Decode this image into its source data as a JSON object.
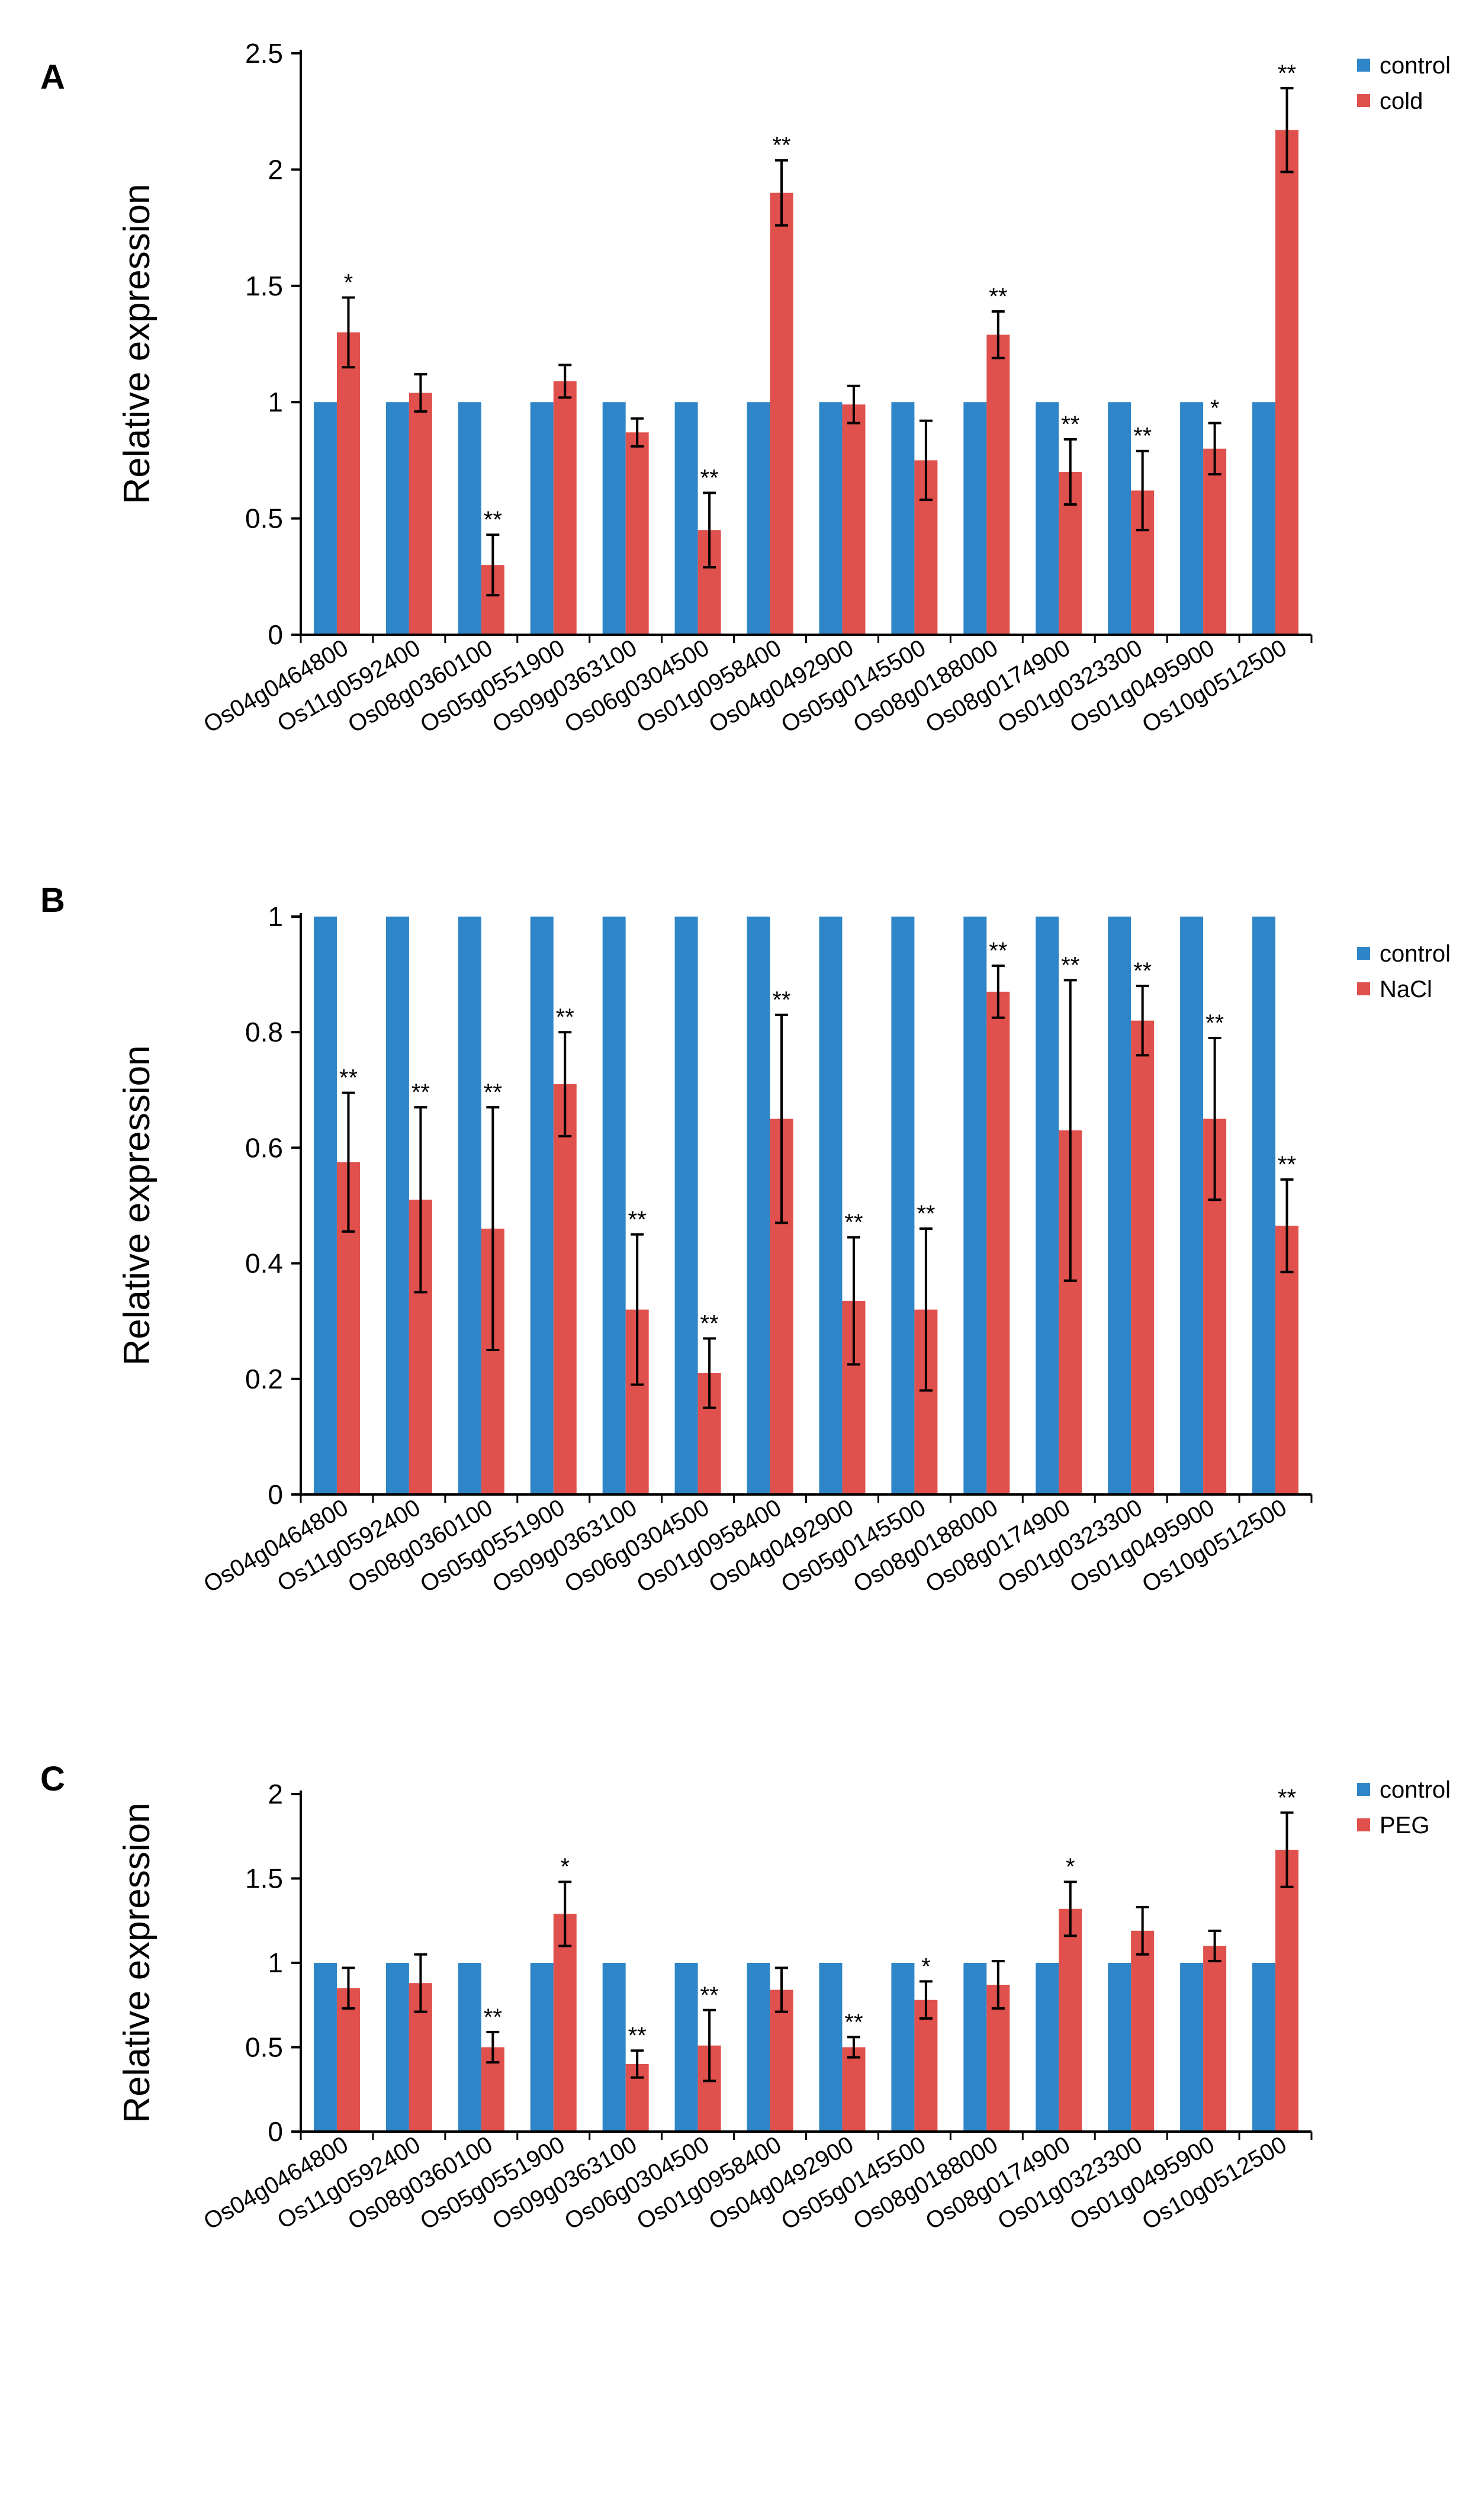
{
  "chart_data": [
    {
      "panel": "A",
      "type": "bar",
      "ylabel": "Relative expression",
      "ylim": [
        0,
        2.5
      ],
      "yticks": [
        "0",
        "0.5",
        "1",
        "1.5",
        "2",
        "2.5"
      ],
      "yticks_values": [
        0,
        0.5,
        1,
        1.5,
        2,
        2.5
      ],
      "categories": [
        "Os04g0464800",
        "Os11g0592400",
        "Os08g0360100",
        "Os05g0551900",
        "Os09g0363100",
        "Os06g0304500",
        "Os01g0958400",
        "Os04g0492900",
        "Os05g0145500",
        "Os08g0188000",
        "Os08g0174900",
        "Os01g0323300",
        "Os01g0495900",
        "Os10g0512500"
      ],
      "legend_position": "top-right",
      "series": [
        {
          "name": "control",
          "color": "#2e86c8",
          "values": [
            1,
            1,
            1,
            1,
            1,
            1,
            1,
            1,
            1,
            1,
            1,
            1,
            1,
            1
          ]
        },
        {
          "name": "cold",
          "color": "#e0504c",
          "values": [
            1.3,
            1.04,
            0.3,
            1.09,
            0.87,
            0.45,
            1.9,
            0.99,
            0.75,
            1.29,
            0.7,
            0.62,
            0.8,
            2.17
          ],
          "errors": [
            0.15,
            0.08,
            0.13,
            0.07,
            0.06,
            0.16,
            0.14,
            0.08,
            0.17,
            0.1,
            0.14,
            0.17,
            0.11,
            0.18
          ]
        }
      ],
      "significance": [
        "*",
        "",
        "**",
        "",
        "",
        "**",
        "**",
        "",
        "",
        "**",
        "**",
        "**",
        "*",
        "**"
      ]
    },
    {
      "panel": "B",
      "type": "bar",
      "ylabel": "Relative expression",
      "ylim": [
        0,
        1
      ],
      "yticks": [
        "0",
        "0.2",
        "0.4",
        "0.6",
        "0.8",
        "1"
      ],
      "yticks_values": [
        0,
        0.2,
        0.4,
        0.6,
        0.8,
        1
      ],
      "categories": [
        "Os04g0464800",
        "Os11g0592400",
        "Os08g0360100",
        "Os05g0551900",
        "Os09g0363100",
        "Os06g0304500",
        "Os01g0958400",
        "Os04g0492900",
        "Os05g0145500",
        "Os08g0188000",
        "Os08g0174900",
        "Os01g0323300",
        "Os01g0495900",
        "Os10g0512500"
      ],
      "legend_position": "top-right",
      "series": [
        {
          "name": "control",
          "color": "#2e86c8",
          "values": [
            1,
            1,
            1,
            1,
            1,
            1,
            1,
            1,
            1,
            1,
            1,
            1,
            1,
            1
          ]
        },
        {
          "name": "NaCl",
          "color": "#e0504c",
          "values": [
            0.575,
            0.51,
            0.46,
            0.71,
            0.32,
            0.21,
            0.65,
            0.335,
            0.32,
            0.87,
            0.63,
            0.82,
            0.65,
            0.465
          ],
          "errors": [
            0.12,
            0.16,
            0.21,
            0.09,
            0.13,
            0.06,
            0.18,
            0.11,
            0.14,
            0.045,
            0.26,
            0.06,
            0.14,
            0.08
          ]
        }
      ],
      "significance": [
        "**",
        "**",
        "**",
        "**",
        "**",
        "**",
        "**",
        "**",
        "**",
        "**",
        "**",
        "**",
        "**",
        "**"
      ]
    },
    {
      "panel": "C",
      "type": "bar",
      "ylabel": "Relative expression",
      "ylim": [
        0,
        2
      ],
      "yticks": [
        "0",
        "0.5",
        "1",
        "1.5",
        "2"
      ],
      "yticks_values": [
        0,
        0.5,
        1,
        1.5,
        2
      ],
      "categories": [
        "Os04g0464800",
        "Os11g0592400",
        "Os08g0360100",
        "Os05g0551900",
        "Os09g0363100",
        "Os06g0304500",
        "Os01g0958400",
        "Os04g0492900",
        "Os05g0145500",
        "Os08g0188000",
        "Os08g0174900",
        "Os01g0323300",
        "Os01g0495900",
        "Os10g0512500"
      ],
      "legend_position": "top-right",
      "series": [
        {
          "name": "control",
          "color": "#2e86c8",
          "values": [
            1,
            1,
            1,
            1,
            1,
            1,
            1,
            1,
            1,
            1,
            1,
            1,
            1,
            1
          ]
        },
        {
          "name": "PEG",
          "color": "#e0504c",
          "values": [
            0.85,
            0.88,
            0.5,
            1.29,
            0.4,
            0.51,
            0.84,
            0.5,
            0.78,
            0.87,
            1.32,
            1.19,
            1.1,
            1.67
          ],
          "errors": [
            0.12,
            0.17,
            0.09,
            0.19,
            0.08,
            0.21,
            0.13,
            0.06,
            0.11,
            0.14,
            0.16,
            0.14,
            0.09,
            0.22
          ]
        }
      ],
      "significance": [
        "",
        "",
        "**",
        "*",
        "**",
        "**",
        "",
        "**",
        "*",
        "",
        "*",
        "",
        "",
        "**"
      ]
    }
  ]
}
